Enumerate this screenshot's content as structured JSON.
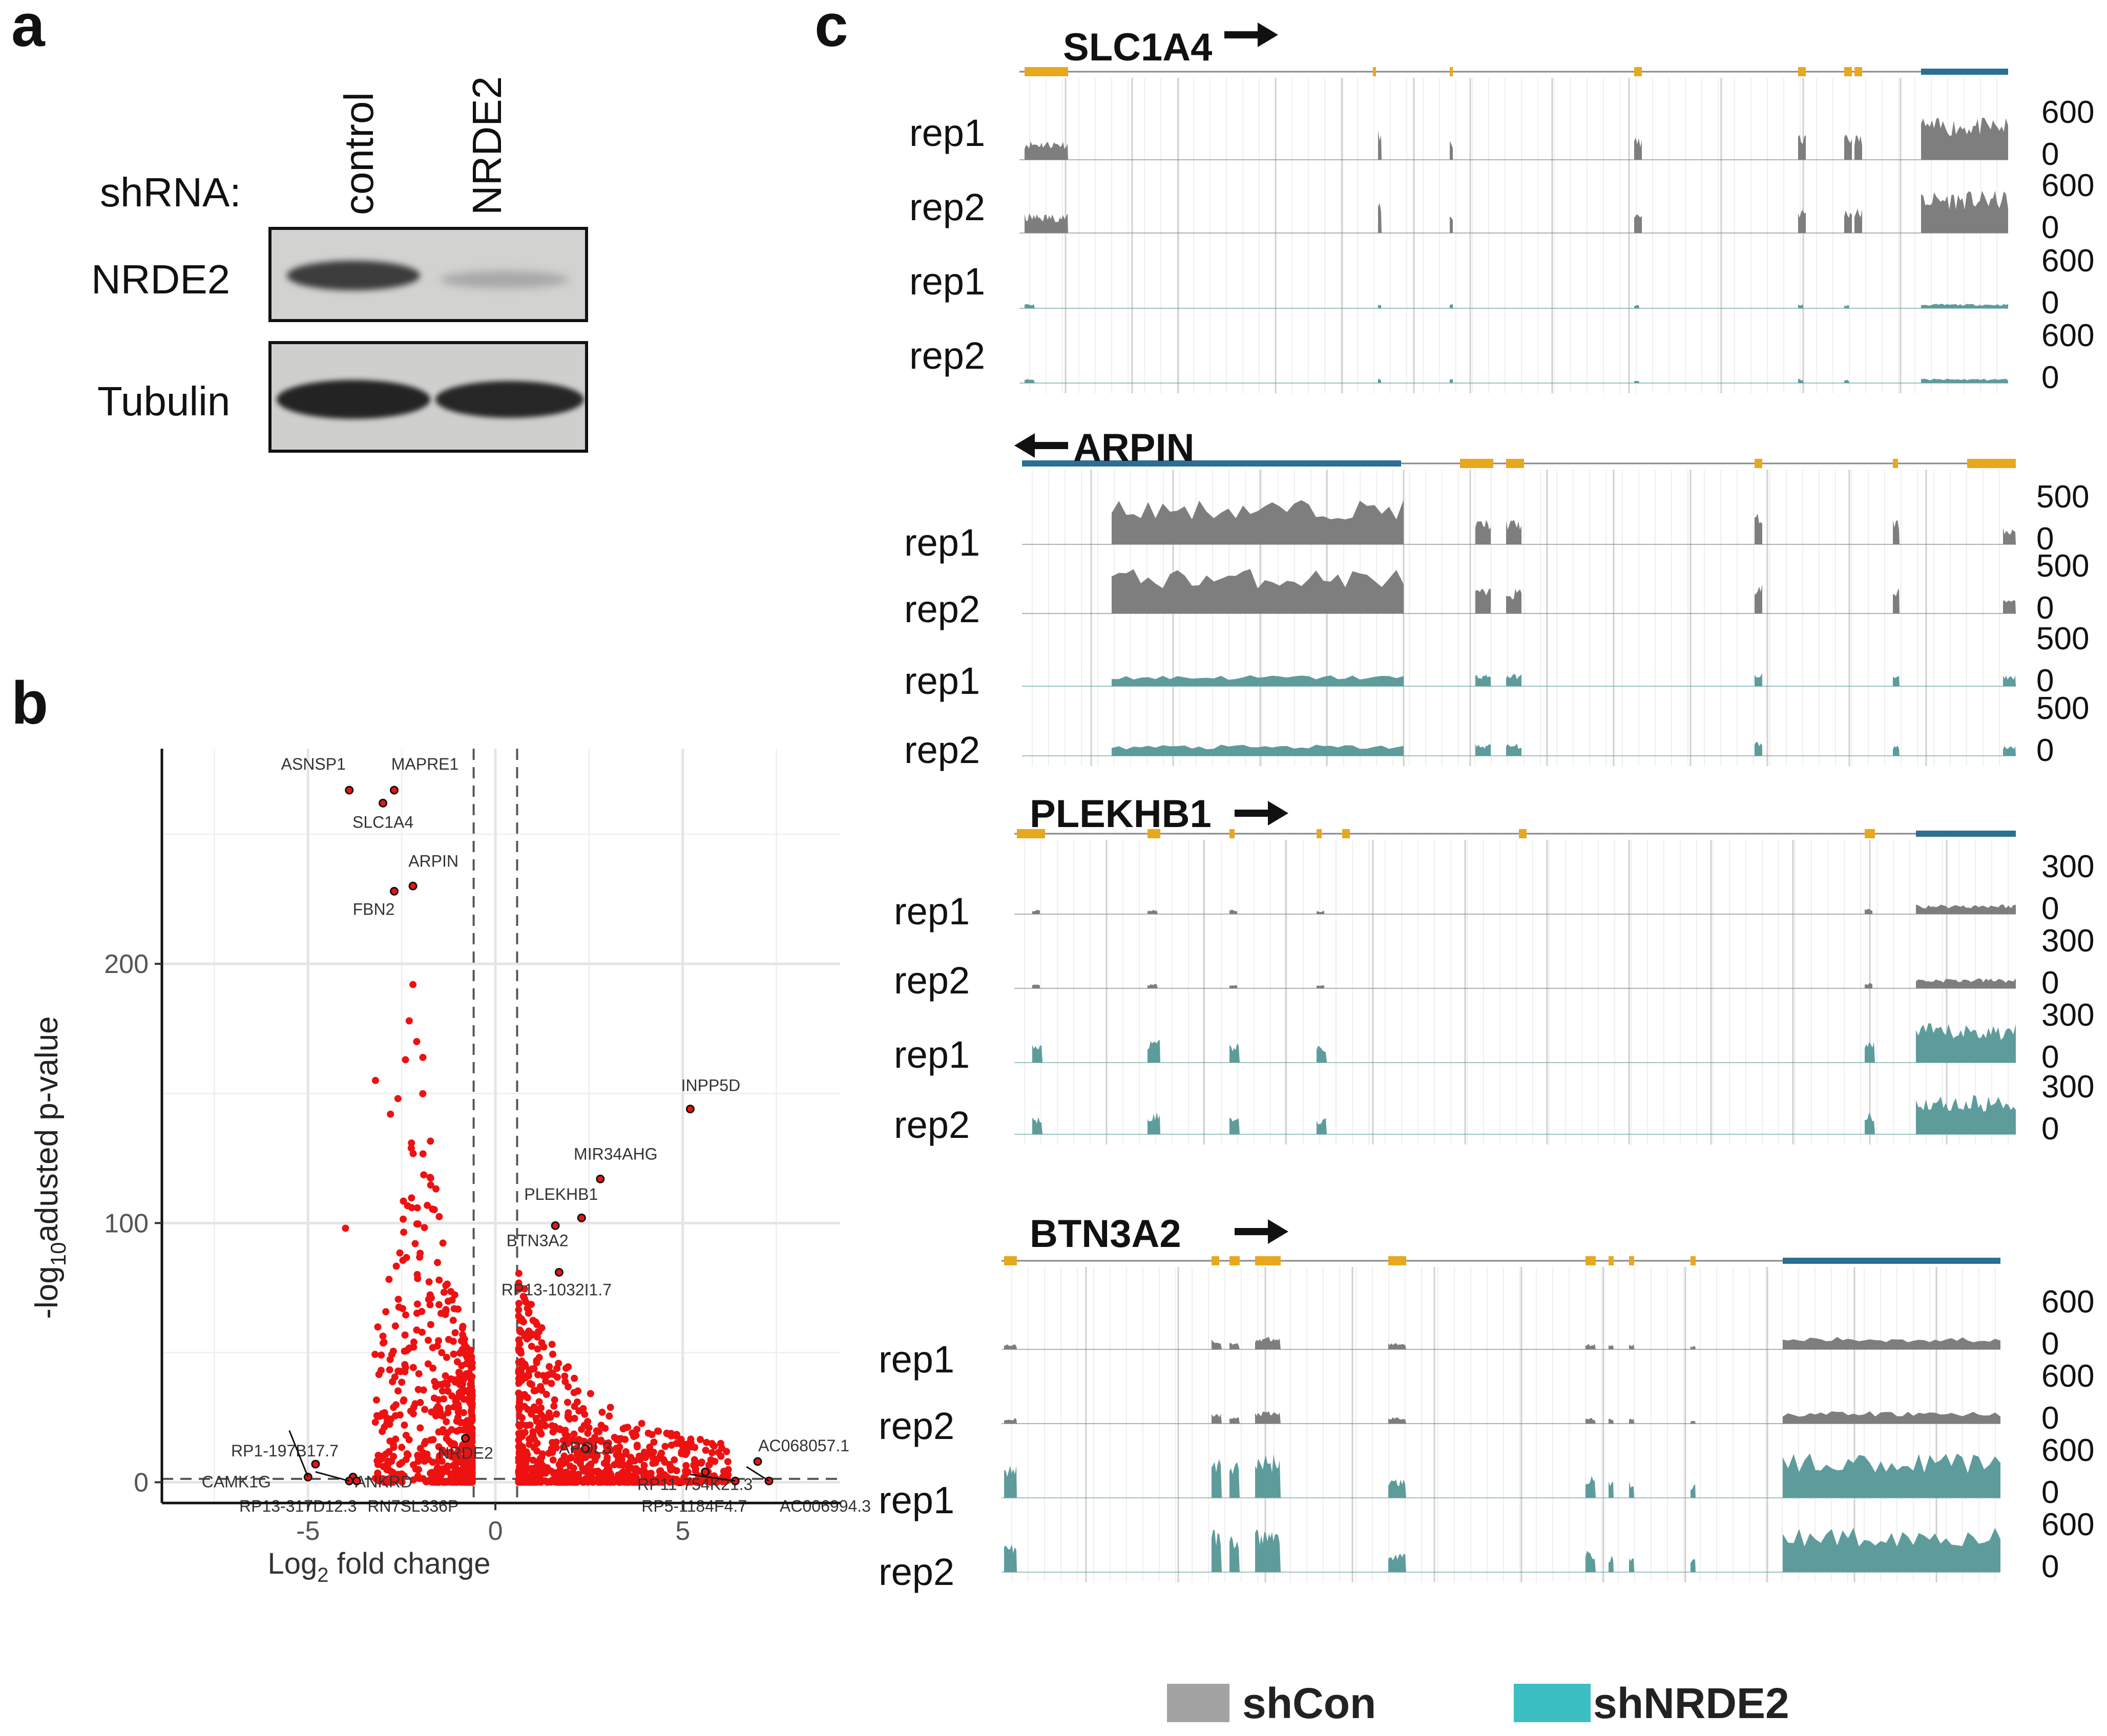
{
  "panel_a": {
    "label": "a",
    "shrna_label": "shRNA:",
    "lanes": [
      "control",
      "NRDE2"
    ],
    "blots": [
      "NRDE2",
      "Tubulin"
    ]
  },
  "panel_b": {
    "label": "b",
    "ylabel_parts": [
      "-log",
      "10",
      "adusted p-value"
    ],
    "xlabel_parts": [
      "Log",
      "2",
      " fold change"
    ],
    "x_ticks": [
      "-5",
      "0",
      "5"
    ],
    "y_ticks": [
      "0",
      "100",
      "200"
    ],
    "colors": {
      "points": "#ee1111",
      "grid": "#e4e4e4",
      "threshold": "#555555"
    }
  },
  "chart_data": {
    "type": "scatter",
    "title": "",
    "xlabel": "Log2 fold change",
    "ylabel": "-log10adusted p-value",
    "xlim": [
      -8.9,
      9.2
    ],
    "ylim": [
      -8,
      283
    ],
    "fold_change_thresholds": [
      -0.58,
      0.58
    ],
    "pvalue_threshold": 1.3,
    "labeled_genes": [
      {
        "name": "ASNSP1",
        "x": -3.9,
        "y": 267
      },
      {
        "name": "MAPRE1",
        "x": -2.7,
        "y": 267
      },
      {
        "name": "SLC1A4",
        "x": -3.0,
        "y": 262
      },
      {
        "name": "ARPIN",
        "x": -2.2,
        "y": 230
      },
      {
        "name": "FBN2",
        "x": -2.7,
        "y": 228
      },
      {
        "name": "INPP5D",
        "x": 5.2,
        "y": 144
      },
      {
        "name": "MIR34AHG",
        "x": 2.8,
        "y": 117
      },
      {
        "name": "PLEKHB1",
        "x": 2.3,
        "y": 102
      },
      {
        "name": "BTN3A2",
        "x": 1.6,
        "y": 99
      },
      {
        "name": "RP13-1032I1.7",
        "x": 1.7,
        "y": 81
      },
      {
        "name": "RP1-197B17.7",
        "x": -4.8,
        "y": 7
      },
      {
        "name": "NRDE2",
        "x": -0.8,
        "y": 17
      },
      {
        "name": "APOL3",
        "x": 2.4,
        "y": 13
      },
      {
        "name": "AC068057.1",
        "x": 7.0,
        "y": 8
      },
      {
        "name": "CAMK1G",
        "x": -5.0,
        "y": 2
      },
      {
        "name": "ANKRD",
        "x": -3.8,
        "y": 2
      },
      {
        "name": "RP11-754K21.3",
        "x": 5.6,
        "y": 4
      },
      {
        "name": "RP13-317D12.3",
        "x": -3.9,
        "y": 0.5
      },
      {
        "name": "RN7SL336P",
        "x": -3.7,
        "y": 0.5
      },
      {
        "name": "RP5-1184F4.7",
        "x": 6.4,
        "y": 0.5
      },
      {
        "name": "AC006994.3",
        "x": 7.3,
        "y": 0.5
      }
    ]
  },
  "panel_c": {
    "label": "c",
    "genes": [
      {
        "name": "SLC1A4",
        "direction": "right",
        "tracks": [
          {
            "label": "rep1",
            "max": "600",
            "min": "0",
            "condition": "shCon"
          },
          {
            "label": "rep2",
            "max": "600",
            "min": "0",
            "condition": "shCon"
          },
          {
            "label": "rep1",
            "max": "600",
            "min": "0",
            "condition": "shNRDE2"
          },
          {
            "label": "rep2",
            "max": "600",
            "min": "0",
            "condition": "shNRDE2"
          }
        ]
      },
      {
        "name": "ARPIN",
        "direction": "left",
        "tracks": [
          {
            "label": "rep1",
            "max": "500",
            "min": "0",
            "condition": "shCon"
          },
          {
            "label": "rep2",
            "max": "500",
            "min": "0",
            "condition": "shCon"
          },
          {
            "label": "rep1",
            "max": "500",
            "min": "0",
            "condition": "shNRDE2"
          },
          {
            "label": "rep2",
            "max": "500",
            "min": "0",
            "condition": "shNRDE2"
          }
        ]
      },
      {
        "name": "PLEKHB1",
        "direction": "right",
        "tracks": [
          {
            "label": "rep1",
            "max": "300",
            "min": "0",
            "condition": "shCon"
          },
          {
            "label": "rep2",
            "max": "300",
            "min": "0",
            "condition": "shCon"
          },
          {
            "label": "rep1",
            "max": "300",
            "min": "0",
            "condition": "shNRDE2"
          },
          {
            "label": "rep2",
            "max": "300",
            "min": "0",
            "condition": "shNRDE2"
          }
        ]
      },
      {
        "name": "BTN3A2",
        "direction": "right",
        "tracks": [
          {
            "label": "rep1",
            "max": "600",
            "min": "0",
            "condition": "shCon"
          },
          {
            "label": "rep2",
            "max": "600",
            "min": "0",
            "condition": "shCon"
          },
          {
            "label": "rep1",
            "max": "600",
            "min": "0",
            "condition": "shNRDE2"
          },
          {
            "label": "rep2",
            "max": "600",
            "min": "0",
            "condition": "shNRDE2"
          }
        ]
      }
    ],
    "legend": [
      {
        "name": "shCon",
        "color": "#a3a3a3"
      },
      {
        "name": "shNRDE2",
        "color": "#3cbfc3"
      }
    ],
    "track_colors": {
      "shCon": "#7e7e7e",
      "shNRDE2": "#5e9c9c",
      "exon": "#e8a81e",
      "utr": "#2b6f93"
    }
  }
}
